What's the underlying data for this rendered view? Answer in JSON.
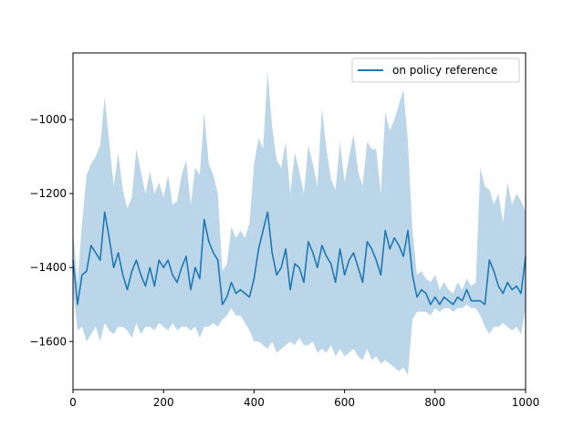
{
  "chart_data": {
    "type": "line",
    "title": "",
    "xlabel": "",
    "ylabel": "",
    "xlim": [
      0,
      1000
    ],
    "ylim": [
      -1730,
      -820
    ],
    "x_ticks": [
      0,
      200,
      400,
      600,
      800,
      1000
    ],
    "y_ticks": [
      -1600,
      -1400,
      -1200,
      -1000
    ],
    "grid": false,
    "legend_position": "top-right",
    "series": [
      {
        "name": "on policy reference",
        "color": "#1f77b4",
        "band_color": "#1f77b4",
        "band_opacity": 0.3,
        "x": [
          0,
          10,
          20,
          30,
          40,
          50,
          60,
          70,
          80,
          90,
          100,
          110,
          120,
          130,
          140,
          150,
          160,
          170,
          180,
          190,
          200,
          210,
          220,
          230,
          240,
          250,
          260,
          270,
          280,
          290,
          300,
          310,
          320,
          330,
          340,
          350,
          360,
          370,
          380,
          390,
          400,
          410,
          420,
          430,
          440,
          450,
          460,
          470,
          480,
          490,
          500,
          510,
          520,
          530,
          540,
          550,
          560,
          570,
          580,
          590,
          600,
          610,
          620,
          630,
          640,
          650,
          660,
          670,
          680,
          690,
          700,
          710,
          720,
          730,
          740,
          750,
          760,
          770,
          780,
          790,
          800,
          810,
          820,
          830,
          840,
          850,
          860,
          870,
          880,
          890,
          900,
          910,
          920,
          930,
          940,
          950,
          960,
          970,
          980,
          990,
          1000
        ],
        "mean": [
          -1380,
          -1500,
          -1420,
          -1410,
          -1340,
          -1360,
          -1380,
          -1250,
          -1320,
          -1400,
          -1360,
          -1420,
          -1460,
          -1410,
          -1380,
          -1420,
          -1450,
          -1400,
          -1450,
          -1380,
          -1400,
          -1380,
          -1420,
          -1440,
          -1400,
          -1370,
          -1460,
          -1400,
          -1430,
          -1270,
          -1330,
          -1360,
          -1380,
          -1500,
          -1480,
          -1440,
          -1470,
          -1460,
          -1470,
          -1480,
          -1430,
          -1350,
          -1300,
          -1250,
          -1360,
          -1420,
          -1400,
          -1350,
          -1460,
          -1390,
          -1400,
          -1440,
          -1330,
          -1360,
          -1400,
          -1340,
          -1370,
          -1390,
          -1440,
          -1350,
          -1420,
          -1380,
          -1360,
          -1400,
          -1440,
          -1330,
          -1350,
          -1380,
          -1420,
          -1300,
          -1350,
          -1320,
          -1340,
          -1370,
          -1300,
          -1420,
          -1480,
          -1460,
          -1470,
          -1500,
          -1480,
          -1500,
          -1480,
          -1490,
          -1500,
          -1480,
          -1490,
          -1460,
          -1490,
          -1490,
          -1490,
          -1500,
          -1380,
          -1410,
          -1450,
          -1470,
          -1440,
          -1460,
          -1450,
          -1470,
          -1370
        ],
        "lower": [
          -1460,
          -1570,
          -1560,
          -1600,
          -1580,
          -1560,
          -1600,
          -1550,
          -1570,
          -1580,
          -1560,
          -1560,
          -1570,
          -1590,
          -1550,
          -1580,
          -1560,
          -1560,
          -1570,
          -1550,
          -1560,
          -1570,
          -1550,
          -1570,
          -1560,
          -1560,
          -1570,
          -1560,
          -1590,
          -1560,
          -1560,
          -1550,
          -1560,
          -1540,
          -1530,
          -1510,
          -1530,
          -1530,
          -1550,
          -1570,
          -1600,
          -1600,
          -1610,
          -1620,
          -1600,
          -1630,
          -1620,
          -1610,
          -1600,
          -1610,
          -1590,
          -1610,
          -1610,
          -1600,
          -1630,
          -1620,
          -1630,
          -1610,
          -1640,
          -1620,
          -1640,
          -1630,
          -1620,
          -1640,
          -1650,
          -1620,
          -1650,
          -1640,
          -1660,
          -1650,
          -1660,
          -1670,
          -1680,
          -1670,
          -1690,
          -1540,
          -1520,
          -1520,
          -1520,
          -1530,
          -1510,
          -1520,
          -1510,
          -1510,
          -1520,
          -1510,
          -1510,
          -1500,
          -1510,
          -1510,
          -1530,
          -1560,
          -1580,
          -1560,
          -1560,
          -1550,
          -1560,
          -1570,
          -1560,
          -1580,
          -1510
        ],
        "upper": [
          -1300,
          -1440,
          -1280,
          -1150,
          -1120,
          -1100,
          -1070,
          -940,
          -1060,
          -1180,
          -1090,
          -1190,
          -1240,
          -1210,
          -1080,
          -1140,
          -1200,
          -1140,
          -1200,
          -1170,
          -1210,
          -1150,
          -1230,
          -1220,
          -1150,
          -1110,
          -1230,
          -1130,
          -1150,
          -980,
          -1120,
          -1150,
          -1200,
          -1410,
          -1390,
          -1290,
          -1320,
          -1300,
          -1320,
          -1280,
          -1120,
          -1050,
          -1080,
          -870,
          -1020,
          -1110,
          -1130,
          -1060,
          -1200,
          -1090,
          -1140,
          -1200,
          -1070,
          -1120,
          -1180,
          -970,
          -1080,
          -1160,
          -1190,
          -1060,
          -1170,
          -1100,
          -1040,
          -1140,
          -1180,
          -1060,
          -1080,
          -1080,
          -1200,
          -980,
          -1030,
          -1000,
          -960,
          -920,
          -1060,
          -1300,
          -1420,
          -1410,
          -1430,
          -1440,
          -1420,
          -1460,
          -1440,
          -1460,
          -1470,
          -1440,
          -1460,
          -1430,
          -1450,
          -1440,
          -1130,
          -1180,
          -1190,
          -1230,
          -1200,
          -1280,
          -1170,
          -1230,
          -1200,
          -1220,
          -1250
        ]
      }
    ]
  }
}
